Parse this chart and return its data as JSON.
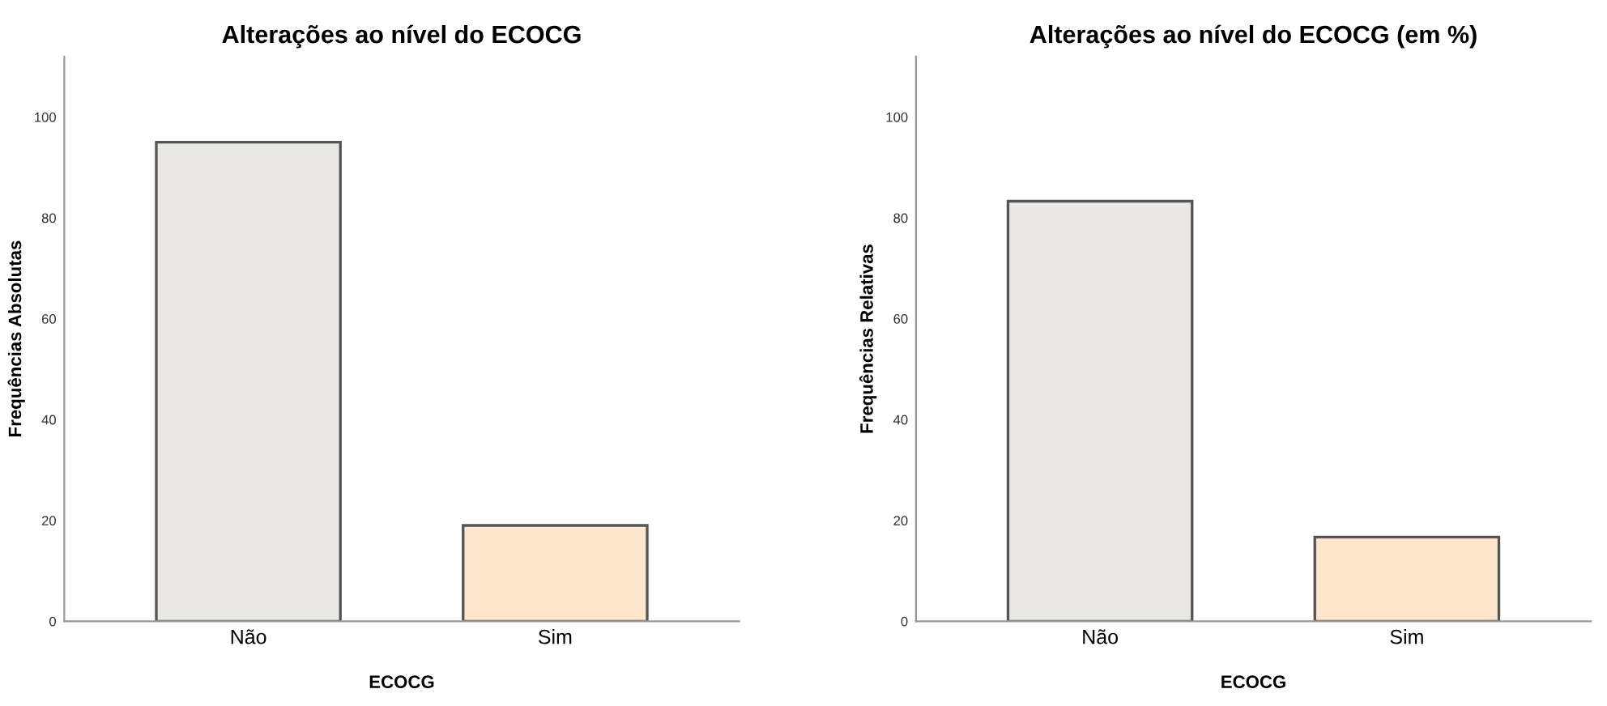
{
  "chart_data": [
    {
      "type": "bar",
      "title": "Alterações ao nível do ECOCG",
      "xlabel": "ECOCG",
      "ylabel": "Frequências Absolutas",
      "categories": [
        "Não",
        "Sim"
      ],
      "values": [
        95,
        19
      ],
      "colors": [
        "#e9e8e3",
        "#fee6cd"
      ],
      "ylim": [
        0,
        112
      ],
      "yticks": [
        0,
        20,
        40,
        60,
        80,
        100
      ],
      "grid": false,
      "legend": false
    },
    {
      "type": "bar",
      "title": "Alterações ao nível do ECOCG (em %)",
      "xlabel": "ECOCG",
      "ylabel": "Frequências Relativas",
      "categories": [
        "Não",
        "Sim"
      ],
      "values": [
        83.3,
        16.7
      ],
      "colors": [
        "#e9e8e3",
        "#fee6cd"
      ],
      "ylim": [
        0,
        112
      ],
      "yticks": [
        0,
        20,
        40,
        60,
        80,
        100
      ],
      "grid": false,
      "legend": false
    }
  ]
}
